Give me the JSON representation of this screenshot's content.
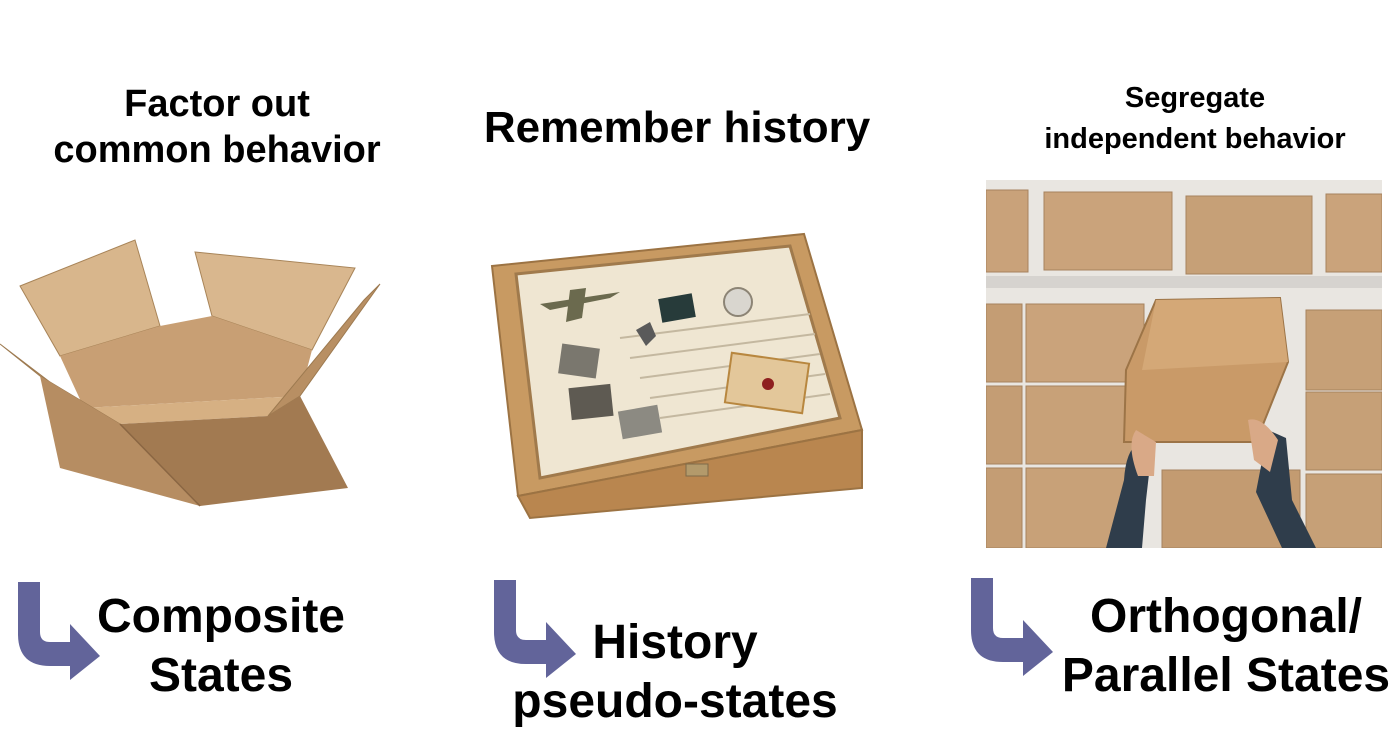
{
  "columns": [
    {
      "heading_line1": "Factor out",
      "heading_line2": "common behavior",
      "label_line1": "Composite",
      "label_line2": "States",
      "picture": "open-cardboard-box"
    },
    {
      "heading_line1": "Remember history",
      "label_line1": "History",
      "label_line2": "pseudo-states",
      "picture": "wooden-memory-box"
    },
    {
      "heading_line1": "Segregate",
      "heading_line2": "independent behavior",
      "label_line1": "Orthogonal/",
      "label_line2": "Parallel States",
      "picture": "boxes-on-shelves"
    }
  ],
  "colors": {
    "arrow": "#62649a",
    "cardboard": "#c9a27a",
    "wood": "#c89a62"
  },
  "icons": [
    "curved-arrow-icon"
  ]
}
